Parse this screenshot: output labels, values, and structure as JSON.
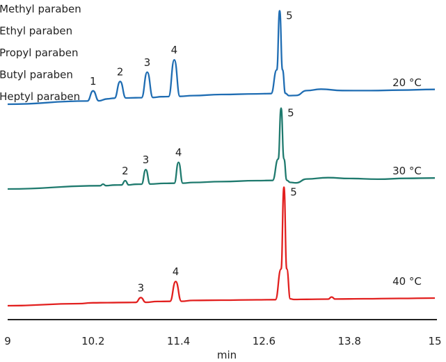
{
  "chart_data": {
    "type": "line",
    "xlabel": "min",
    "xlim": [
      9,
      15
    ],
    "xticks": [
      {
        "value": 9,
        "label": "9"
      },
      {
        "value": 10.2,
        "label": "10.2"
      },
      {
        "value": 11.4,
        "label": "11.4"
      },
      {
        "value": 12.6,
        "label": "12.6"
      },
      {
        "value": 13.8,
        "label": "13.8"
      },
      {
        "value": 15,
        "label": "15"
      }
    ],
    "legend": {
      "placement": "top-left",
      "entries": [
        "1. Methyl paraben",
        "2. Ethyl paraben",
        "3. Propyl paraben",
        "4. Butyl paraben",
        "5. Heptyl paraben"
      ]
    },
    "series": [
      {
        "name": "20 °C",
        "color": "#1f6db3",
        "x": [
          9.0,
          10.12,
          10.2,
          10.28,
          10.4,
          10.5,
          10.58,
          10.66,
          10.8,
          10.88,
          10.96,
          11.04,
          11.16,
          11.26,
          11.34,
          11.42,
          11.6,
          12.0,
          12.5,
          12.7,
          12.78,
          12.82,
          12.86,
          12.9,
          12.95,
          13.05,
          13.2,
          13.4,
          13.7,
          14.1,
          14.5,
          15.0
        ],
        "y": [
          0.0,
          0.03,
          0.2,
          0.03,
          0.06,
          0.07,
          0.35,
          0.07,
          0.07,
          0.07,
          0.5,
          0.07,
          0.08,
          0.08,
          0.7,
          0.08,
          0.09,
          0.1,
          0.1,
          0.1,
          0.5,
          1.5,
          0.5,
          0.1,
          0.06,
          0.06,
          0.14,
          0.16,
          0.13,
          0.12,
          0.12,
          0.12
        ],
        "peaks": [
          {
            "label": "1",
            "x": 10.2
          },
          {
            "label": "2",
            "x": 10.58
          },
          {
            "label": "3",
            "x": 10.96
          },
          {
            "label": "4",
            "x": 11.34
          },
          {
            "label": "5",
            "x": 12.82
          }
        ]
      },
      {
        "name": "30 °C",
        "color": "#1f7a6e",
        "x": [
          9.0,
          10.3,
          10.34,
          10.38,
          10.5,
          10.6,
          10.65,
          10.7,
          10.8,
          10.88,
          10.94,
          11.0,
          11.2,
          11.34,
          11.4,
          11.46,
          11.6,
          12.0,
          12.5,
          12.72,
          12.8,
          12.84,
          12.88,
          12.92,
          12.97,
          13.05,
          13.2,
          13.5,
          13.8,
          14.2,
          14.6,
          15.0
        ],
        "y": [
          0.0,
          0.04,
          0.07,
          0.04,
          0.05,
          0.05,
          0.13,
          0.05,
          0.06,
          0.06,
          0.33,
          0.06,
          0.07,
          0.07,
          0.46,
          0.07,
          0.08,
          0.09,
          0.1,
          0.1,
          0.5,
          1.45,
          0.5,
          0.1,
          0.06,
          0.05,
          0.12,
          0.14,
          0.12,
          0.1,
          0.11,
          0.11
        ],
        "peaks": [
          {
            "label": "2",
            "x": 10.65
          },
          {
            "label": "3",
            "x": 10.94
          },
          {
            "label": "4",
            "x": 11.4
          },
          {
            "label": "5",
            "x": 12.84
          }
        ]
      },
      {
        "name": "40 °C",
        "color": "#e2201f",
        "x": [
          9.0,
          10.0,
          10.2,
          10.4,
          10.7,
          10.8,
          10.87,
          10.94,
          11.1,
          11.28,
          11.36,
          11.44,
          11.6,
          12.0,
          12.5,
          12.76,
          12.84,
          12.88,
          12.92,
          12.97,
          13.02,
          13.2,
          13.5,
          13.55,
          13.6,
          14.0,
          14.5,
          15.0
        ],
        "y": [
          0.0,
          0.02,
          0.03,
          0.03,
          0.03,
          0.03,
          0.1,
          0.03,
          0.04,
          0.04,
          0.33,
          0.04,
          0.05,
          0.05,
          0.05,
          0.05,
          0.5,
          1.7,
          0.5,
          0.06,
          0.05,
          0.05,
          0.05,
          0.08,
          0.05,
          0.05,
          0.05,
          0.05
        ],
        "peaks": [
          {
            "label": "3",
            "x": 10.87
          },
          {
            "label": "4",
            "x": 11.36
          },
          {
            "label": "5",
            "x": 12.88
          }
        ]
      }
    ],
    "grid": false
  }
}
